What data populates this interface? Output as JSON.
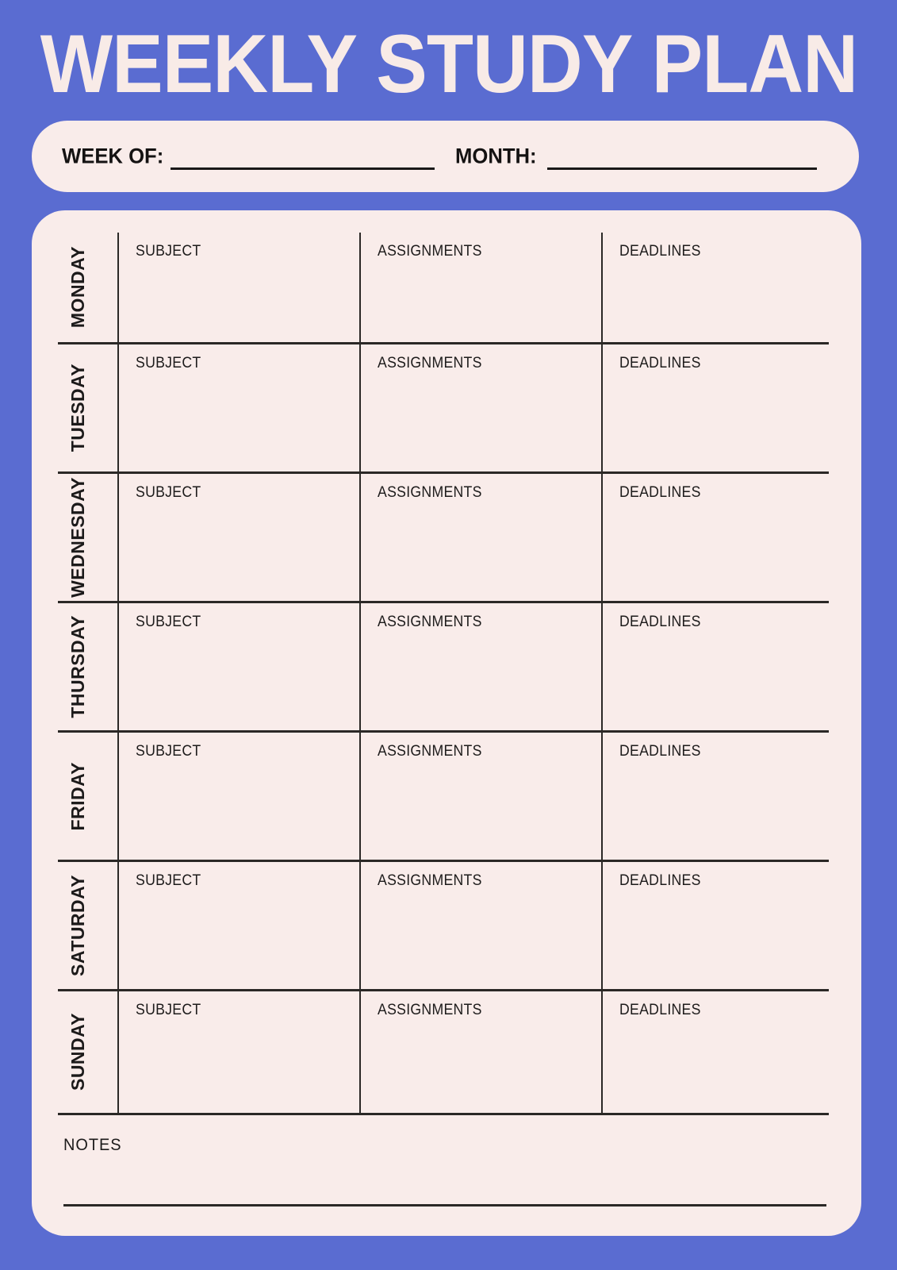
{
  "colors": {
    "background": "#5a6cd1",
    "card": "#f9ecea",
    "title_text": "#f8ebe7",
    "ink": "#1c1a1a",
    "line": "#2b2826"
  },
  "title": "WEEKLY STUDY PLAN",
  "header": {
    "week_label": "WEEK OF:",
    "week_value": "",
    "month_label": "MONTH:",
    "month_value": ""
  },
  "table": {
    "columns": [
      "SUBJECT",
      "ASSIGNMENTS",
      "DEADLINES"
    ],
    "days": [
      "MONDAY",
      "TUESDAY",
      "WEDNESDAY",
      "THURSDAY",
      "FRIDAY",
      "SATURDAY",
      "SUNDAY"
    ],
    "entries": [
      {
        "day": "MONDAY",
        "subject": "",
        "assignments": "",
        "deadlines": ""
      },
      {
        "day": "TUESDAY",
        "subject": "",
        "assignments": "",
        "deadlines": ""
      },
      {
        "day": "WEDNESDAY",
        "subject": "",
        "assignments": "",
        "deadlines": ""
      },
      {
        "day": "THURSDAY",
        "subject": "",
        "assignments": "",
        "deadlines": ""
      },
      {
        "day": "FRIDAY",
        "subject": "",
        "assignments": "",
        "deadlines": ""
      },
      {
        "day": "SATURDAY",
        "subject": "",
        "assignments": "",
        "deadlines": ""
      },
      {
        "day": "SUNDAY",
        "subject": "",
        "assignments": "",
        "deadlines": ""
      }
    ]
  },
  "notes": {
    "label": "NOTES",
    "value": ""
  }
}
